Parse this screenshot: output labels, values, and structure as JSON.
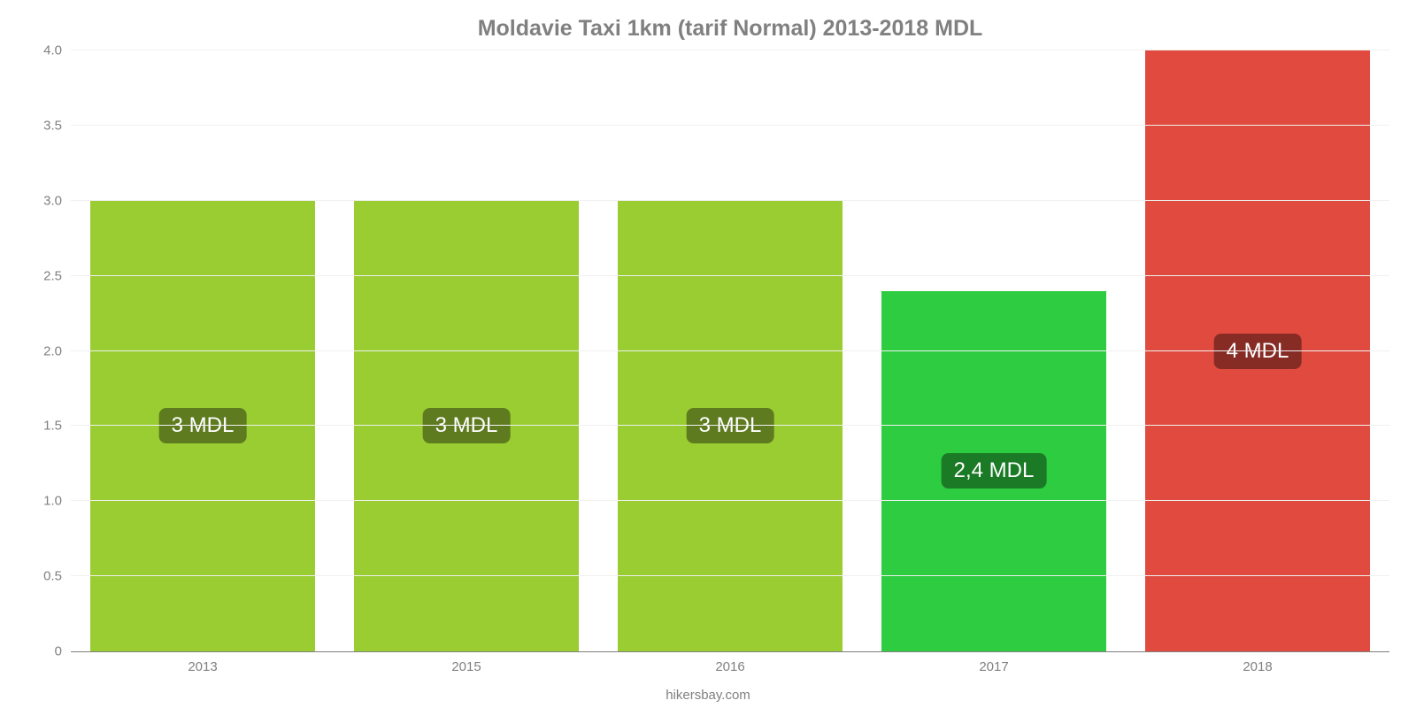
{
  "chart": {
    "type": "bar",
    "title": "Moldavie Taxi 1km (tarif Normal) 2013-2018 MDL",
    "title_color": "#808080",
    "title_fontsize": 25,
    "background_color": "#ffffff",
    "grid_color": "#f0f0f0",
    "axis_color": "#808080",
    "tick_label_color": "#808080",
    "tick_fontsize": 15,
    "y": {
      "min": 0,
      "max": 4.0,
      "ticks": [
        0,
        0.5,
        1.0,
        1.5,
        2.0,
        2.5,
        3.0,
        3.5,
        4.0
      ],
      "tick_labels": [
        "0",
        "0.5",
        "1.0",
        "1.5",
        "2.0",
        "2.5",
        "3.0",
        "3.5",
        "4.0"
      ]
    },
    "categories": [
      "2013",
      "2015",
      "2016",
      "2017",
      "2018"
    ],
    "values": [
      3,
      3,
      3,
      2.4,
      4
    ],
    "bar_colors": [
      "#9acd32",
      "#9acd32",
      "#9acd32",
      "#2ecc40",
      "#e14a3f"
    ],
    "value_labels": [
      "3 MDL",
      "3 MDL",
      "3 MDL",
      "2,4 MDL",
      "4 MDL"
    ],
    "value_label_bg": [
      "#5e7b1f",
      "#5e7b1f",
      "#5e7b1f",
      "#1b7a25",
      "#872b25"
    ],
    "value_label_color": "#ffffff",
    "value_label_fontsize": 24,
    "bar_width_ratio": 0.85,
    "source": "hikersbay.com"
  }
}
